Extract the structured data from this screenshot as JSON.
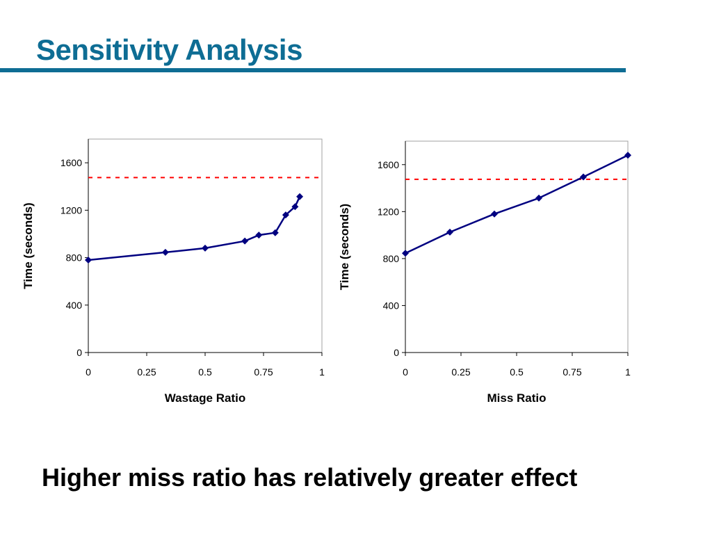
{
  "slide": {
    "title": "Sensitivity Analysis",
    "conclusion": "Higher miss ratio has relatively greater effect"
  },
  "colors": {
    "title": "#0e6d94",
    "series": "#000080",
    "reference_line": "#ff0000"
  },
  "chart_data": [
    {
      "type": "line",
      "title": "",
      "xlabel": "Wastage Ratio",
      "ylabel": "Time (seconds)",
      "xlim": [
        0,
        1
      ],
      "ylim": [
        0,
        1800
      ],
      "xticks": [
        "0",
        "0.25",
        "0.5",
        "0.75",
        "1"
      ],
      "xtick_values": [
        0,
        0.25,
        0.5,
        0.75,
        1
      ],
      "yticks": [
        "0",
        "400",
        "800",
        "1200",
        "1600"
      ],
      "ytick_values": [
        0,
        400,
        800,
        1200,
        1600
      ],
      "grid": false,
      "marker": "diamond",
      "reference_line": {
        "y": 1475,
        "style": "dashed"
      },
      "series": [
        {
          "x": [
            0,
            0.33,
            0.5,
            0.67,
            0.73,
            0.8,
            0.845,
            0.885,
            0.905
          ],
          "y": [
            780,
            845,
            880,
            940,
            990,
            1010,
            1160,
            1230,
            1315
          ]
        }
      ]
    },
    {
      "type": "line",
      "title": "",
      "xlabel": "Miss Ratio",
      "ylabel": "Time (seconds)",
      "xlim": [
        0,
        1
      ],
      "ylim": [
        0,
        1800
      ],
      "xticks": [
        "0",
        "0.25",
        "0.5",
        "0.75",
        "1"
      ],
      "xtick_values": [
        0,
        0.25,
        0.5,
        0.75,
        1
      ],
      "yticks": [
        "0",
        "400",
        "800",
        "1200",
        "1600"
      ],
      "ytick_values": [
        0,
        400,
        800,
        1200,
        1600
      ],
      "grid": false,
      "marker": "diamond",
      "reference_line": {
        "y": 1475,
        "style": "dashed"
      },
      "series": [
        {
          "x": [
            0,
            0.2,
            0.4,
            0.6,
            0.8,
            1
          ],
          "y": [
            845,
            1025,
            1180,
            1315,
            1495,
            1680
          ]
        }
      ]
    }
  ]
}
